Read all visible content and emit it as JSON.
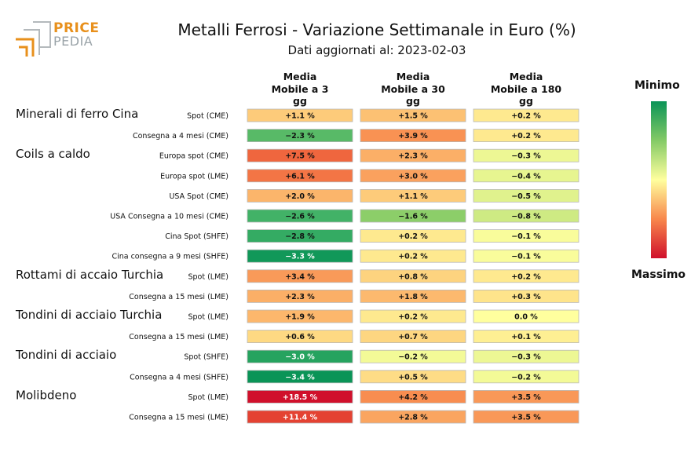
{
  "logo": {
    "brand_line1": "PRICE",
    "brand_line2": "PEDIA"
  },
  "title": "Metalli Ferrosi - Variazione Settimanale in Euro (%)",
  "subtitle": "Dati aggiornati al: 2023-02-03",
  "legend": {
    "top_label": "Minimo",
    "bottom_label": "Massimo"
  },
  "chart_data": {
    "type": "table",
    "columns": [
      "Media\nMobile a 3\ngg",
      "Media\nMobile a 30\ngg",
      "Media\nMobile a 180\ngg"
    ],
    "groups": [
      {
        "name": "Minerali di ferro Cina",
        "rows": [
          {
            "label": "Spot (CME)",
            "values": [
              1.1,
              1.5,
              0.2
            ],
            "texts": [
              "+1.1 %",
              "+1.5 %",
              "+0.2 %"
            ]
          },
          {
            "label": "Consegna a 4 mesi (CME)",
            "values": [
              -2.3,
              3.9,
              0.2
            ],
            "texts": [
              "−2.3 %",
              "+3.9 %",
              "+0.2 %"
            ]
          }
        ]
      },
      {
        "name": "Coils a caldo",
        "rows": [
          {
            "label": "Europa spot (CME)",
            "values": [
              7.5,
              2.3,
              -0.3
            ],
            "texts": [
              "+7.5 %",
              "+2.3 %",
              "−0.3 %"
            ]
          },
          {
            "label": "Europa spot (LME)",
            "values": [
              6.1,
              3.0,
              -0.4
            ],
            "texts": [
              "+6.1 %",
              "+3.0 %",
              "−0.4 %"
            ]
          },
          {
            "label": "USA Spot (CME)",
            "values": [
              2.0,
              1.1,
              -0.5
            ],
            "texts": [
              "+2.0 %",
              "+1.1 %",
              "−0.5 %"
            ]
          },
          {
            "label": "USA Consegna a 10 mesi (CME)",
            "values": [
              -2.6,
              -1.6,
              -0.8
            ],
            "texts": [
              "−2.6 %",
              "−1.6 %",
              "−0.8 %"
            ]
          },
          {
            "label": "Cina Spot (SHFE)",
            "values": [
              -2.8,
              0.2,
              -0.1
            ],
            "texts": [
              "−2.8 %",
              "+0.2 %",
              "−0.1 %"
            ]
          },
          {
            "label": "Cina consegna a 9 mesi (SHFE)",
            "values": [
              -3.3,
              0.2,
              -0.1
            ],
            "texts": [
              "−3.3 %",
              "+0.2 %",
              "−0.1 %"
            ]
          }
        ]
      },
      {
        "name": "Rottami di accaio Turchia",
        "rows": [
          {
            "label": "Spot (LME)",
            "values": [
              3.4,
              0.8,
              0.2
            ],
            "texts": [
              "+3.4 %",
              "+0.8 %",
              "+0.2 %"
            ]
          },
          {
            "label": "Consegna a 15 mesi (LME)",
            "values": [
              2.3,
              1.8,
              0.3
            ],
            "texts": [
              "+2.3 %",
              "+1.8 %",
              "+0.3 %"
            ]
          }
        ]
      },
      {
        "name": "Tondini di acciaio Turchia",
        "rows": [
          {
            "label": "Spot (LME)",
            "values": [
              1.9,
              0.2,
              0.0
            ],
            "texts": [
              "+1.9 %",
              "+0.2 %",
              "0.0 %"
            ]
          },
          {
            "label": "Consegna a 15 mesi (LME)",
            "values": [
              0.6,
              0.7,
              0.1
            ],
            "texts": [
              "+0.6 %",
              "+0.7 %",
              "+0.1 %"
            ]
          }
        ]
      },
      {
        "name": "Tondini di acciaio",
        "rows": [
          {
            "label": "Spot (SHFE)",
            "values": [
              -3.0,
              -0.2,
              -0.3
            ],
            "texts": [
              "−3.0 %",
              "−0.2 %",
              "−0.3 %"
            ]
          },
          {
            "label": "Consegna a 4 mesi (SHFE)",
            "values": [
              -3.4,
              0.5,
              -0.2
            ],
            "texts": [
              "−3.4 %",
              "+0.5 %",
              "−0.2 %"
            ]
          }
        ]
      },
      {
        "name": "Molibdeno",
        "rows": [
          {
            "label": "Spot (LME)",
            "values": [
              18.5,
              4.2,
              3.5
            ],
            "texts": [
              "+18.5 %",
              "+4.2 %",
              "+3.5 %"
            ]
          },
          {
            "label": "Consegna a 15 mesi (LME)",
            "values": [
              11.4,
              2.8,
              3.5
            ],
            "texts": [
              "+11.4 %",
              "+2.8 %",
              "+3.5 %"
            ]
          }
        ]
      }
    ],
    "colormap": "RdYlGn_r",
    "color_min_value": -3.4,
    "color_max_value": 18.5
  }
}
